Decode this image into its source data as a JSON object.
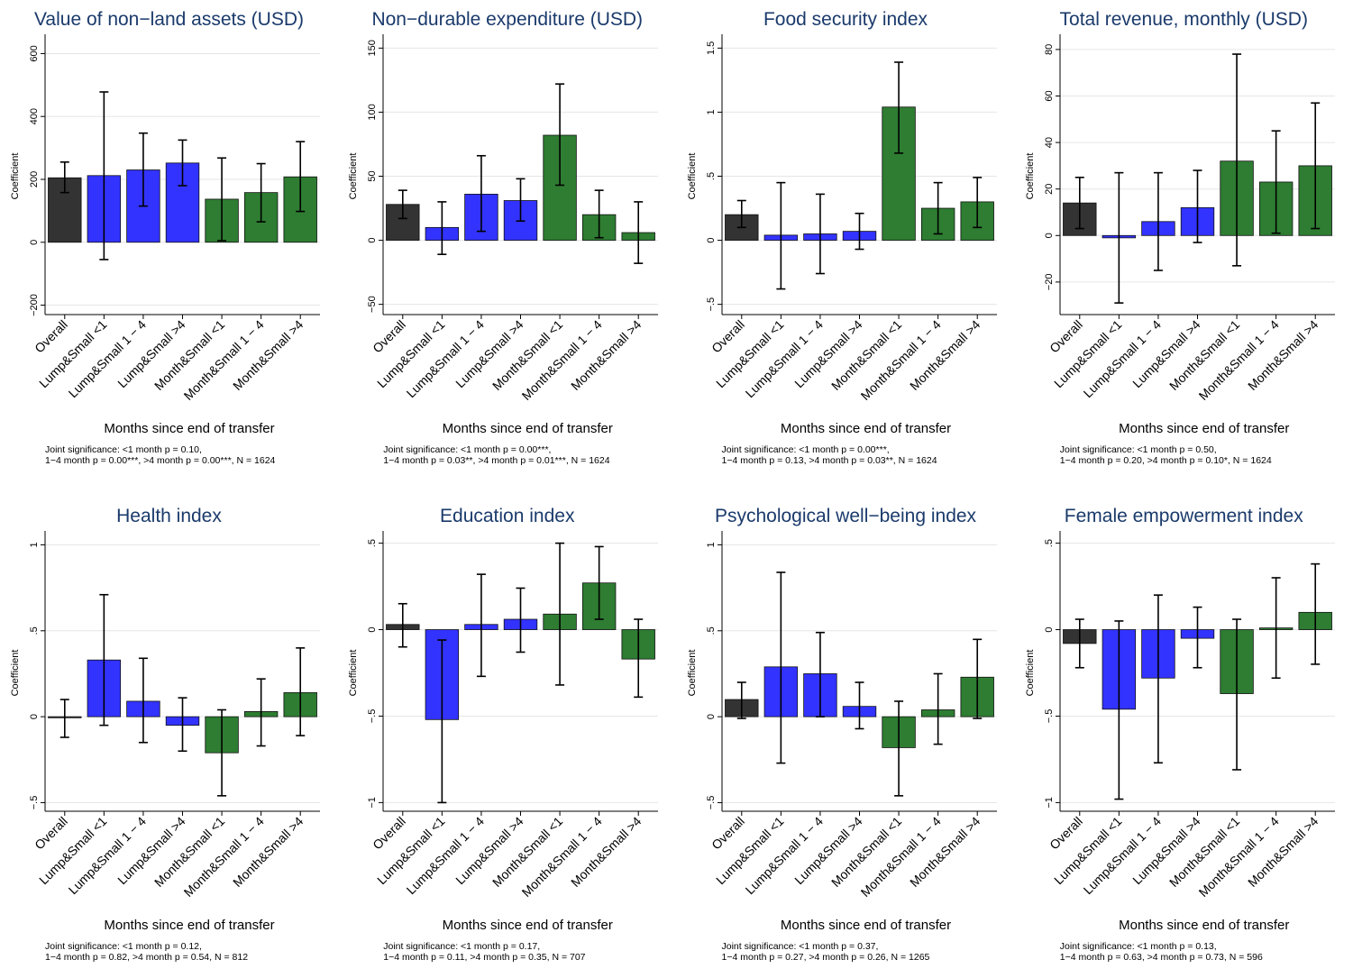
{
  "chart_data": [
    {
      "type": "bar",
      "title": "Value of non−land assets (USD)",
      "xlabel": "Months since end of transfer",
      "ylabel": "Coefficient",
      "categories": [
        "Overall",
        "Lump&Small <1",
        "Lump&Small 1 − 4",
        "Lump&Small >4",
        "Month&Small <1",
        "Month&Small 1 − 4",
        "Month&Small >4"
      ],
      "values": [
        205,
        212,
        230,
        252,
        137,
        158,
        208
      ],
      "ci_low": [
        158,
        -55,
        115,
        180,
        5,
        65,
        98
      ],
      "ci_high": [
        255,
        478,
        347,
        325,
        268,
        250,
        320
      ],
      "bar_colors": [
        "#333333",
        "#3333ff",
        "#3333ff",
        "#3333ff",
        "#2e7d32",
        "#2e7d32",
        "#2e7d32"
      ],
      "ylim": [
        -230,
        650
      ],
      "yticks": [
        -200,
        0,
        200,
        400,
        600
      ],
      "ytick_labels": [
        "−200",
        "0",
        "200",
        "400",
        "600"
      ],
      "note_line1": "Joint significance: <1 month p = 0.10,",
      "note_line2": "1−4 month p = 0.00***, >4 month p = 0.00***, N = 1624"
    },
    {
      "type": "bar",
      "title": "Non−durable expenditure (USD)",
      "xlabel": "Months since end of transfer",
      "ylabel": "Coefficient",
      "categories": [
        "Overall",
        "Lump&Small <1",
        "Lump&Small 1 − 4",
        "Lump&Small >4",
        "Month&Small <1",
        "Month&Small 1 − 4",
        "Month&Small >4"
      ],
      "values": [
        28,
        10,
        36,
        31,
        82,
        20,
        6
      ],
      "ci_low": [
        17,
        -11,
        7,
        15,
        43,
        2,
        -18
      ],
      "ci_high": [
        39,
        30,
        66,
        48,
        122,
        39,
        30
      ],
      "bar_colors": [
        "#333333",
        "#3333ff",
        "#3333ff",
        "#3333ff",
        "#2e7d32",
        "#2e7d32",
        "#2e7d32"
      ],
      "ylim": [
        -58,
        158
      ],
      "yticks": [
        -50,
        0,
        50,
        100,
        150
      ],
      "ytick_labels": [
        "−50",
        "0",
        "50",
        "100",
        "150"
      ],
      "note_line1": "Joint significance: <1 month p = 0.00***,",
      "note_line2": "1−4 month p = 0.03**, >4 month p = 0.01***, N = 1624"
    },
    {
      "type": "bar",
      "title": "Food security index",
      "xlabel": "Months since end of transfer",
      "ylabel": "Coefficient",
      "categories": [
        "Overall",
        "Lump&Small <1",
        "Lump&Small 1 − 4",
        "Lump&Small >4",
        "Month&Small <1",
        "Month&Small 1 − 4",
        "Month&Small >4"
      ],
      "values": [
        0.2,
        0.04,
        0.05,
        0.07,
        1.04,
        0.25,
        0.3
      ],
      "ci_low": [
        0.1,
        -0.38,
        -0.26,
        -0.07,
        0.68,
        0.05,
        0.1
      ],
      "ci_high": [
        0.31,
        0.45,
        0.36,
        0.21,
        1.39,
        0.45,
        0.49
      ],
      "bar_colors": [
        "#333333",
        "#3333ff",
        "#3333ff",
        "#3333ff",
        "#2e7d32",
        "#2e7d32",
        "#2e7d32"
      ],
      "ylim": [
        -0.58,
        1.58
      ],
      "yticks": [
        -0.5,
        0,
        0.5,
        1,
        1.5
      ],
      "ytick_labels": [
        "−.5",
        "0",
        ".5",
        "1",
        "1.5"
      ],
      "note_line1": "Joint significance: <1 month p = 0.00***,",
      "note_line2": "1−4 month p = 0.13, >4 month p = 0.03**, N = 1624"
    },
    {
      "type": "bar",
      "title": "Total revenue, monthly (USD)",
      "xlabel": "Months since end of transfer",
      "ylabel": "Coefficient",
      "categories": [
        "Overall",
        "Lump&Small <1",
        "Lump&Small 1 − 4",
        "Lump&Small >4",
        "Month&Small <1",
        "Month&Small 1 − 4",
        "Month&Small >4"
      ],
      "values": [
        14,
        -1,
        6,
        12,
        32,
        23,
        30
      ],
      "ci_low": [
        3,
        -29,
        -15,
        -3,
        -13,
        1,
        3
      ],
      "ci_high": [
        25,
        27,
        27,
        28,
        78,
        45,
        57
      ],
      "bar_colors": [
        "#333333",
        "#3333ff",
        "#3333ff",
        "#3333ff",
        "#2e7d32",
        "#2e7d32",
        "#2e7d32"
      ],
      "ylim": [
        -34,
        85
      ],
      "yticks": [
        -20,
        0,
        20,
        40,
        60,
        80
      ],
      "ytick_labels": [
        "−20",
        "0",
        "20",
        "40",
        "60",
        "80"
      ],
      "note_line1": "Joint significance: <1 month p = 0.50,",
      "note_line2": "1−4 month p = 0.20, >4 month p = 0.10*, N = 1624"
    },
    {
      "type": "bar",
      "title": "Health index",
      "xlabel": "Months since end of transfer",
      "ylabel": "Coefficient",
      "categories": [
        "Overall",
        "Lump&Small <1",
        "Lump&Small 1 − 4",
        "Lump&Small >4",
        "Month&Small <1",
        "Month&Small 1 − 4",
        "Month&Small >4"
      ],
      "values": [
        0.0,
        0.33,
        0.09,
        -0.05,
        -0.21,
        0.03,
        0.14
      ],
      "ci_low": [
        -0.12,
        -0.05,
        -0.15,
        -0.2,
        -0.46,
        -0.17,
        -0.11
      ],
      "ci_high": [
        0.1,
        0.71,
        0.34,
        0.11,
        0.04,
        0.22,
        0.4
      ],
      "bar_colors": [
        "#333333",
        "#3333ff",
        "#3333ff",
        "#3333ff",
        "#2e7d32",
        "#2e7d32",
        "#2e7d32"
      ],
      "ylim": [
        -0.55,
        1.06
      ],
      "yticks": [
        -0.5,
        0,
        0.5,
        1
      ],
      "ytick_labels": [
        "−.5",
        "0",
        ".5",
        "1"
      ],
      "note_line1": "Joint significance: <1 month p = 0.12,",
      "note_line2": "1−4 month p = 0.82, >4 month p = 0.54, N = 812"
    },
    {
      "type": "bar",
      "title": "Education index",
      "xlabel": "Months since end of transfer",
      "ylabel": "Coefficient",
      "categories": [
        "Overall",
        "Lump&Small <1",
        "Lump&Small 1 − 4",
        "Lump&Small >4",
        "Month&Small <1",
        "Month&Small 1 − 4",
        "Month&Small >4"
      ],
      "values": [
        0.03,
        -0.52,
        0.03,
        0.06,
        0.09,
        0.27,
        -0.17
      ],
      "ci_low": [
        -0.1,
        -1.0,
        -0.27,
        -0.13,
        -0.32,
        0.06,
        -0.39
      ],
      "ci_high": [
        0.15,
        -0.06,
        0.32,
        0.24,
        0.5,
        0.48,
        0.06
      ],
      "bar_colors": [
        "#333333",
        "#3333ff",
        "#3333ff",
        "#3333ff",
        "#2e7d32",
        "#2e7d32",
        "#2e7d32"
      ],
      "ylim": [
        -1.05,
        0.55
      ],
      "yticks": [
        -1,
        -0.5,
        0,
        0.5
      ],
      "ytick_labels": [
        "−1",
        "−.5",
        "0",
        ".5"
      ],
      "note_line1": "Joint significance: <1 month p = 0.17,",
      "note_line2": "1−4 month p = 0.11, >4 month p = 0.35, N = 707"
    },
    {
      "type": "bar",
      "title": "Psychological well−being index",
      "xlabel": "Months since end of transfer",
      "ylabel": "Coefficient",
      "categories": [
        "Overall",
        "Lump&Small <1",
        "Lump&Small 1 − 4",
        "Lump&Small >4",
        "Month&Small <1",
        "Month&Small 1 − 4",
        "Month&Small >4"
      ],
      "values": [
        0.1,
        0.29,
        0.25,
        0.06,
        -0.18,
        0.04,
        0.23
      ],
      "ci_low": [
        -0.01,
        -0.27,
        0.0,
        -0.07,
        -0.46,
        -0.16,
        -0.01
      ],
      "ci_high": [
        0.2,
        0.84,
        0.49,
        0.2,
        0.09,
        0.25,
        0.45
      ],
      "bar_colors": [
        "#333333",
        "#3333ff",
        "#3333ff",
        "#3333ff",
        "#2e7d32",
        "#2e7d32",
        "#2e7d32"
      ],
      "ylim": [
        -0.55,
        1.06
      ],
      "yticks": [
        -0.5,
        0,
        0.5,
        1
      ],
      "ytick_labels": [
        "−.5",
        "0",
        ".5",
        "1"
      ],
      "note_line1": "Joint significance: <1 month p = 0.37,",
      "note_line2": "1−4 month p = 0.27, >4 month p = 0.26, N = 1265"
    },
    {
      "type": "bar",
      "title": "Female empowerment index",
      "xlabel": "Months since end of transfer",
      "ylabel": "Coefficient",
      "categories": [
        "Overall",
        "Lump&Small <1",
        "Lump&Small 1 − 4",
        "Lump&Small >4",
        "Month&Small <1",
        "Month&Small 1 − 4",
        "Month&Small >4"
      ],
      "values": [
        -0.08,
        -0.46,
        -0.28,
        -0.05,
        -0.37,
        0.01,
        0.1
      ],
      "ci_low": [
        -0.22,
        -0.98,
        -0.77,
        -0.22,
        -0.81,
        -0.28,
        -0.2
      ],
      "ci_high": [
        0.06,
        0.05,
        0.2,
        0.13,
        0.06,
        0.3,
        0.38
      ],
      "bar_colors": [
        "#333333",
        "#3333ff",
        "#3333ff",
        "#3333ff",
        "#2e7d32",
        "#2e7d32",
        "#2e7d32"
      ],
      "ylim": [
        -1.05,
        0.55
      ],
      "yticks": [
        -1,
        -0.5,
        0,
        0.5
      ],
      "ytick_labels": [
        "−1",
        "−.5",
        "0",
        ".5"
      ],
      "note_line1": "Joint significance: <1 month p = 0.13,",
      "note_line2": "1−4 month p = 0.63, >4 month p = 0.73, N = 596"
    }
  ]
}
